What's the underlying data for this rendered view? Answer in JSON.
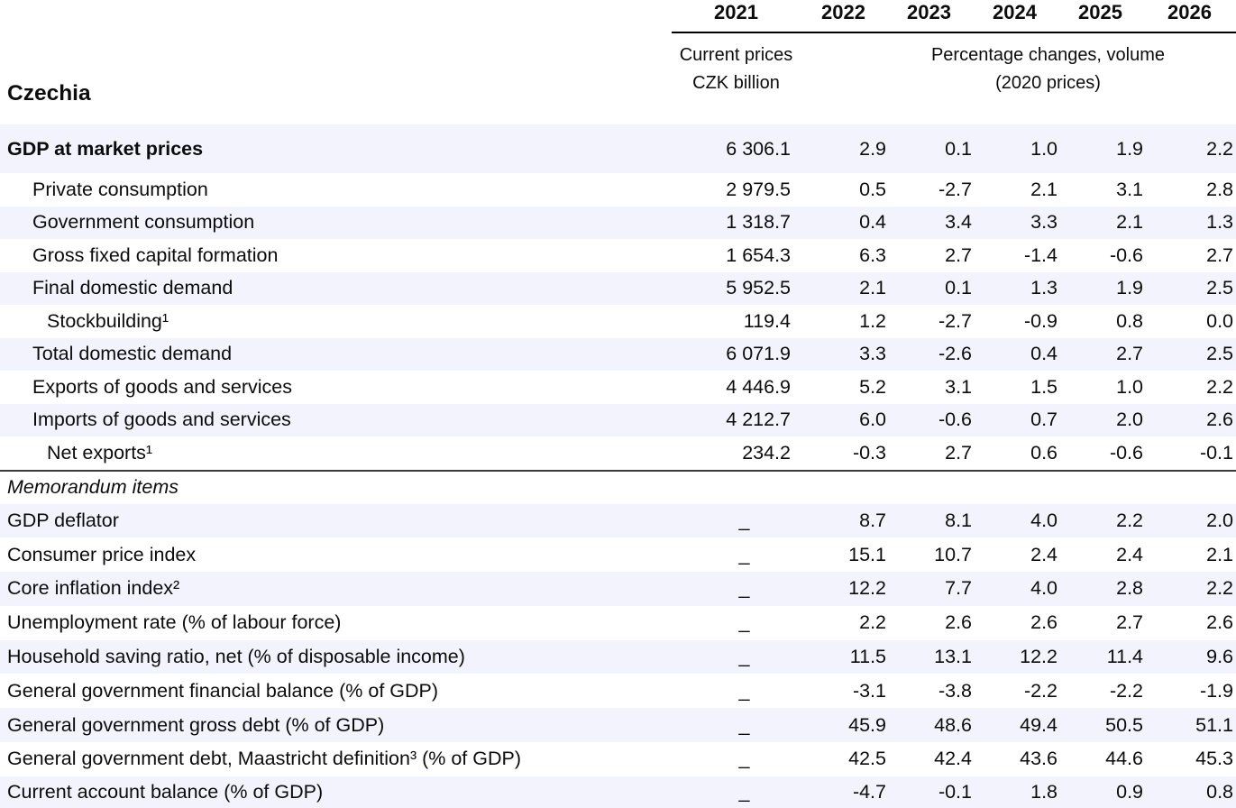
{
  "header": {
    "region": "Czechia",
    "years": [
      "2021",
      "2022",
      "2023",
      "2024",
      "2025",
      "2026"
    ],
    "col2021_subtitle": [
      "Current prices",
      "CZK billion"
    ],
    "volume_subtitle": [
      "Percentage changes, volume",
      "(2020 prices)"
    ]
  },
  "table": {
    "rows": [
      {
        "label": "GDP at market prices",
        "values": [
          "6 306.1",
          "2.9",
          "0.1",
          "1.0",
          "1.9",
          "2.2"
        ]
      },
      {
        "label": "Private consumption",
        "values": [
          "2 979.5",
          "0.5",
          "-2.7",
          "2.1",
          "3.1",
          "2.8"
        ]
      },
      {
        "label": "Government consumption",
        "values": [
          "1 318.7",
          "0.4",
          "3.4",
          "3.3",
          "2.1",
          "1.3"
        ]
      },
      {
        "label": "Gross fixed capital formation",
        "values": [
          "1 654.3",
          "6.3",
          "2.7",
          "-1.4",
          "-0.6",
          "2.7"
        ]
      },
      {
        "label": "Final domestic demand",
        "values": [
          "5 952.5",
          "2.1",
          "0.1",
          "1.3",
          "1.9",
          "2.5"
        ]
      },
      {
        "label": "Stockbuilding¹",
        "values": [
          "119.4",
          "1.2",
          "-2.7",
          "-0.9",
          "0.8",
          "0.0"
        ]
      },
      {
        "label": "Total domestic demand",
        "values": [
          "6 071.9",
          "3.3",
          "-2.6",
          "0.4",
          "2.7",
          "2.5"
        ]
      },
      {
        "label": "Exports of goods and services",
        "values": [
          "4 446.9",
          "5.2",
          "3.1",
          "1.5",
          "1.0",
          "2.2"
        ]
      },
      {
        "label": "Imports of goods and services",
        "values": [
          "4 212.7",
          "6.0",
          "-0.6",
          "0.7",
          "2.0",
          "2.6"
        ]
      },
      {
        "label": "Net exports¹",
        "values": [
          "234.2",
          "-0.3",
          "2.7",
          "0.6",
          "-0.6",
          "-0.1"
        ]
      },
      {
        "label": "Memorandum items",
        "values": []
      },
      {
        "label": "GDP deflator",
        "values": [
          "_",
          "8.7",
          "8.1",
          "4.0",
          "2.2",
          "2.0"
        ]
      },
      {
        "label": "Consumer price index",
        "values": [
          "_",
          "15.1",
          "10.7",
          "2.4",
          "2.4",
          "2.1"
        ]
      },
      {
        "label": "Core inflation index²",
        "values": [
          "_",
          "12.2",
          "7.7",
          "4.0",
          "2.8",
          "2.2"
        ]
      },
      {
        "label": "Unemployment rate (% of labour force)",
        "values": [
          "_",
          "2.2",
          "2.6",
          "2.6",
          "2.7",
          "2.6"
        ]
      },
      {
        "label": "Household saving ratio, net (% of disposable income)",
        "values": [
          "_",
          "11.5",
          "13.1",
          "12.2",
          "11.4",
          "9.6"
        ]
      },
      {
        "label": "General government financial balance (% of GDP)",
        "values": [
          "_",
          "-3.1",
          "-3.8",
          "-2.2",
          "-2.2",
          "-1.9"
        ]
      },
      {
        "label": "General government gross debt (% of GDP)",
        "values": [
          "_",
          "45.9",
          "48.6",
          "49.4",
          "50.5",
          "51.1"
        ]
      },
      {
        "label": "General government debt, Maastricht definition³ (% of GDP)",
        "values": [
          "_",
          "42.5",
          "42.4",
          "43.6",
          "44.6",
          "45.3"
        ]
      },
      {
        "label": "Current account balance (% of GDP)",
        "values": [
          "_",
          "-4.7",
          "-0.1",
          "1.8",
          "0.9",
          "0.8"
        ]
      }
    ]
  },
  "colors": {
    "row_shade": "#f3f3fd",
    "rule": "#000000",
    "section_rule": "#3a3a3a",
    "text": "#0c0c0c"
  }
}
